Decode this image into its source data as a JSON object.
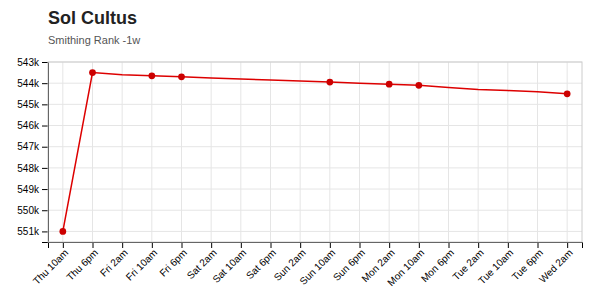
{
  "chart_data": {
    "type": "line",
    "title": "Sol Cultus",
    "subtitle": "Smithing Rank -1w",
    "categories": [
      "Thu 10am",
      "Thu 6pm",
      "Fri 2am",
      "Fri 10am",
      "Fri 6pm",
      "Sat 2am",
      "Sat 10am",
      "Sat 6pm",
      "Sun 2am",
      "Sun 10am",
      "Sun 6pm",
      "Mon 2am",
      "Mon 10am",
      "Mon 6pm",
      "Tue 2am",
      "Tue 10am",
      "Tue 6pm",
      "Wed 2am"
    ],
    "series": [
      {
        "type": "line",
        "color": "#dd0000",
        "values": [
          551000,
          543500,
          543600,
          543650,
          543700,
          543750,
          543800,
          543850,
          543900,
          543950,
          544000,
          544050,
          544100,
          544200,
          544300,
          544350,
          544400,
          544500
        ]
      },
      {
        "type": "scatter",
        "color": "#cc0000",
        "marker": "circle",
        "values": [
          551000,
          543500,
          null,
          543650,
          543700,
          null,
          null,
          null,
          null,
          543950,
          null,
          544050,
          544100,
          null,
          null,
          null,
          null,
          544500
        ]
      }
    ],
    "ylim": [
      551500,
      543000
    ],
    "yticks": [
      {
        "value": 543000,
        "label": "543k"
      },
      {
        "value": 544000,
        "label": "544k"
      },
      {
        "value": 545000,
        "label": "545k"
      },
      {
        "value": 546000,
        "label": "546k"
      },
      {
        "value": 547000,
        "label": "547k"
      },
      {
        "value": 548000,
        "label": "548k"
      },
      {
        "value": 549000,
        "label": "549k"
      },
      {
        "value": 550000,
        "label": "550k"
      },
      {
        "value": 551000,
        "label": "551k"
      }
    ],
    "grid": true
  }
}
